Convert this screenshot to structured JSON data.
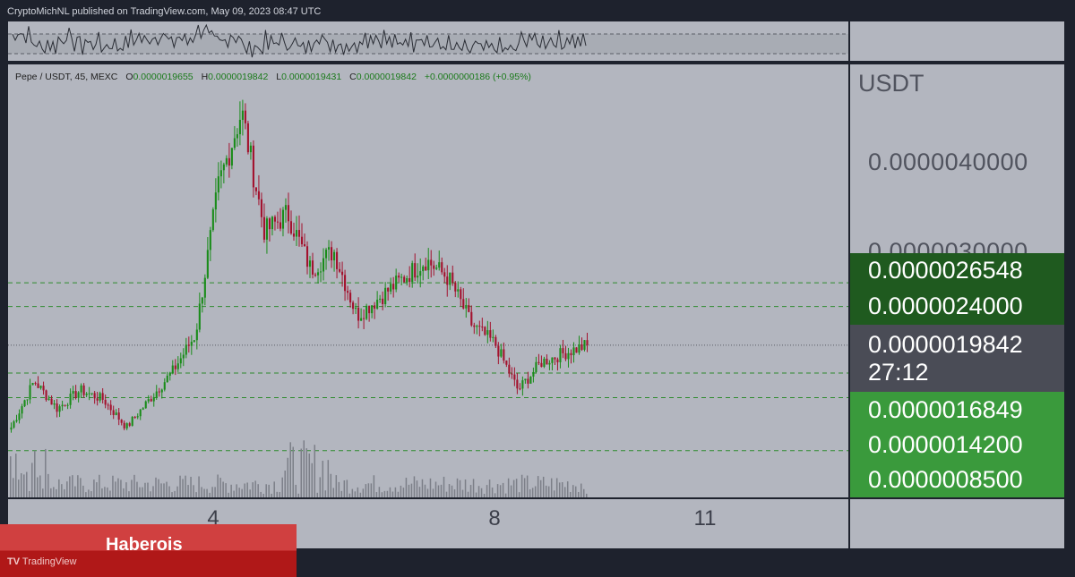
{
  "header": {
    "published_text": "CryptoMichNL published on TradingView.com, May 09, 2023 08:47 UTC"
  },
  "legend": {
    "symbol": "Pepe / USDT, 45, MEXC",
    "open_label": "O",
    "open": "0.0000019655",
    "high_label": "H",
    "high": "0.0000019842",
    "low_label": "L",
    "low": "0.0000019431",
    "close_label": "C",
    "close": "0.0000019842",
    "change": "+0.0000000186 (+0.95%)"
  },
  "price_scale": {
    "unit": "USDT",
    "axis_labels": [
      "0.0000040000",
      "0.0000030000"
    ],
    "tags": {
      "resistance_high": "0.0000026548",
      "resistance_low": "0.0000024000",
      "last_price": "0.0000019842",
      "countdown": "27:12",
      "support_1": "0.0000016849",
      "support_2": "0.0000014200",
      "support_3": "0.0000008500"
    }
  },
  "time_axis": {
    "ticks": [
      "4",
      "8",
      "11"
    ]
  },
  "banner": {
    "text": "Haberois",
    "brand": "TradingView"
  },
  "colors": {
    "up": "#1a8c1a",
    "down": "#a3122e",
    "level_line": "#2e8b2e",
    "tag_dark_green": "#1f5a1f",
    "tag_green": "#3a9a3c",
    "tag_gray": "#4a4c56",
    "pane_bg": "#b3b6bf",
    "frame_bg": "#1e222d",
    "banner_red": "#c52a2a"
  },
  "chart_data": {
    "type": "candlestick",
    "symbol": "Pepe / USDT",
    "timeframe": "45",
    "exchange": "MEXC",
    "y_unit": "USDT",
    "x_ticks": [
      "4",
      "8",
      "11"
    ],
    "horizontal_levels": [
      2.6548e-06,
      2.4e-06,
      1.6849e-06,
      1.42e-06,
      8.5e-07
    ],
    "last_price": 1.9842e-06,
    "close_path": [
      {
        "d": "May 2",
        "p": 1.1e-06
      },
      {
        "d": "May 2",
        "p": 1.6e-06
      },
      {
        "d": "May 3",
        "p": 1.3e-06
      },
      {
        "d": "May 3",
        "p": 1.5e-06
      },
      {
        "d": "May 3",
        "p": 1.4e-06
      },
      {
        "d": "May 4",
        "p": 1.1e-06
      },
      {
        "d": "May 4",
        "p": 1.4e-06
      },
      {
        "d": "May 4",
        "p": 1.7e-06
      },
      {
        "d": "May 5",
        "p": 2.1e-06
      },
      {
        "d": "May 5",
        "p": 3.7e-06
      },
      {
        "d": "May 5",
        "p": 4.5e-06
      },
      {
        "d": "May 5",
        "p": 3.2e-06
      },
      {
        "d": "May 6",
        "p": 3.4e-06
      },
      {
        "d": "May 6",
        "p": 2.8e-06
      },
      {
        "d": "May 6",
        "p": 3e-06
      },
      {
        "d": "May 7",
        "p": 2.3e-06
      },
      {
        "d": "May 7",
        "p": 2.5e-06
      },
      {
        "d": "May 7",
        "p": 2.7e-06
      },
      {
        "d": "May 7",
        "p": 2.9e-06
      },
      {
        "d": "May 8",
        "p": 2.7e-06
      },
      {
        "d": "May 8",
        "p": 2.2e-06
      },
      {
        "d": "May 8",
        "p": 2e-06
      },
      {
        "d": "May 9",
        "p": 1.5e-06
      },
      {
        "d": "May 9",
        "p": 1.8e-06
      },
      {
        "d": "May 9",
        "p": 1.9e-06
      },
      {
        "d": "May 9",
        "p": 1.9842e-06
      }
    ]
  }
}
